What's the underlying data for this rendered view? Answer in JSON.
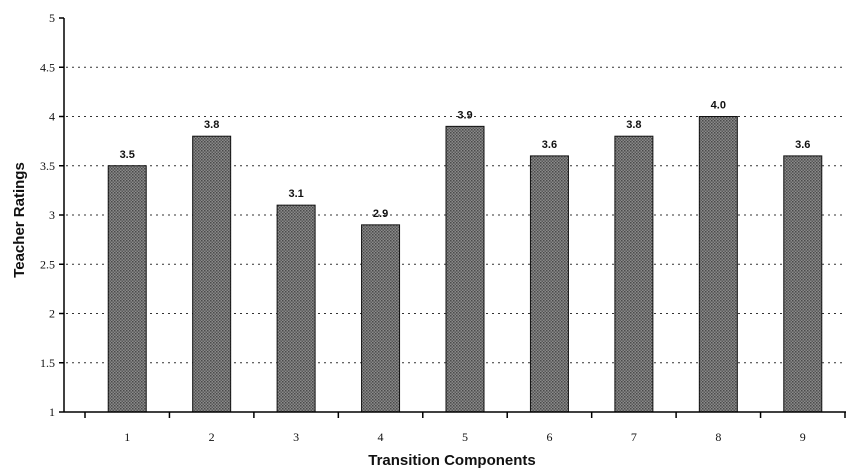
{
  "chart_data": {
    "type": "bar",
    "categories": [
      "1",
      "2",
      "3",
      "4",
      "5",
      "6",
      "7",
      "8",
      "9"
    ],
    "values": [
      3.5,
      3.8,
      3.1,
      2.9,
      3.9,
      3.6,
      3.8,
      4.0,
      3.6
    ],
    "data_labels": [
      "3.5",
      "3.8",
      "3.1",
      "2.9",
      "3.9",
      "3.6",
      "3.8",
      "4.0",
      "3.6"
    ],
    "xlabel": "Transition Components",
    "ylabel": "Teacher Ratings",
    "ylim": [
      1,
      5
    ],
    "yticks": [
      1,
      1.5,
      2,
      2.5,
      3,
      3.5,
      4,
      4.5,
      5
    ],
    "ytick_labels": [
      "1",
      "1.5",
      "2",
      "2.5",
      "3",
      "3.5",
      "4",
      "4.5",
      "5"
    ],
    "grid": true,
    "bar_color": "#7a7a7a"
  }
}
